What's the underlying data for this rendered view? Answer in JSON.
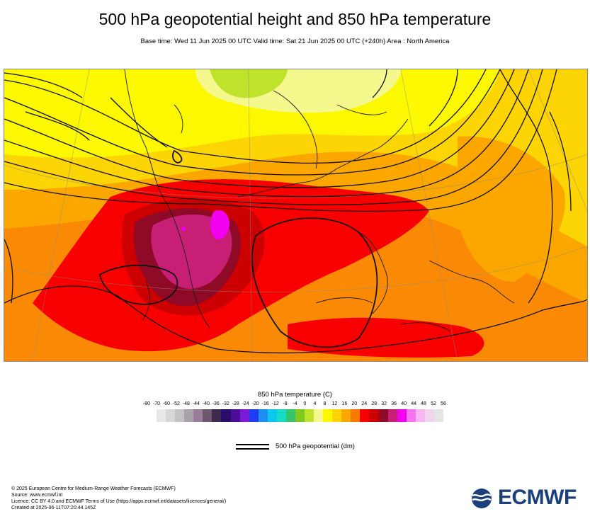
{
  "header": {
    "title": "500 hPa geopotential height and 850 hPa temperature",
    "subtitle": "Base time: Wed 11 Jun 2025 00 UTC Valid time: Sat 21 Jun 2025 00 UTC (+240h) Area : North America"
  },
  "legend": {
    "title": "850 hPa temperature (C)",
    "ticks": [
      "-80",
      "-70",
      "-60",
      "-52",
      "-48",
      "-44",
      "-40",
      "-36",
      "-32",
      "-28",
      "-24",
      "-20",
      "-16",
      "-12",
      "-8",
      "-4",
      "0",
      "4",
      "8",
      "12",
      "16",
      "20",
      "24",
      "28",
      "32",
      "36",
      "40",
      "44",
      "48",
      "52",
      "56"
    ],
    "colors": [
      "#e8e8e8",
      "#d7d7d7",
      "#c3c3c3",
      "#a9a2ab",
      "#9a7d9b",
      "#705770",
      "#3e2a4d",
      "#2a0c6b",
      "#4d0d9b",
      "#7a19d6",
      "#1f3cf0",
      "#1c8eee",
      "#0cc6f0",
      "#17dcc5",
      "#34c56a",
      "#7fca1d",
      "#bfe22a",
      "#f5f88c",
      "#fcf800",
      "#fdd404",
      "#fca600",
      "#f97a00",
      "#f80000",
      "#cc0000",
      "#8e0a27",
      "#c81f76",
      "#f300f0",
      "#f773f2",
      "#f7b6f0",
      "#f1d4ee",
      "#e5e5e5"
    ]
  },
  "contour_key": {
    "label": "500 hPa geopotential (dm)"
  },
  "map": {
    "area": "North America"
  },
  "footer": {
    "lines": [
      "© 2025 European Centre for Medium-Range Weather Forecasts (ECMWF)",
      "Source: www.ecmwf.int",
      "Licence: CC BY 4.0 and ECMWF Terms of Use (https://apps.ecmwf.int/datasets/licences/general/)",
      "Created at 2025-06-11T07:20:44.145Z"
    ]
  },
  "logo": {
    "text": "ECMWF",
    "color": "#1b3f7a"
  }
}
